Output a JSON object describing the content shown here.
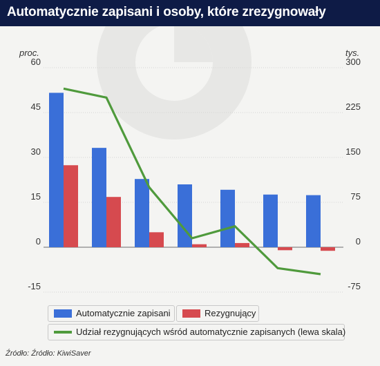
{
  "header": {
    "title": "Automatycznie zapisani i osoby, które zrezygnowały"
  },
  "source": "Źródło: Źródło: KiwiSaver",
  "colors": {
    "header_bg": "#0e1b46",
    "blue": "#3a6fd8",
    "red": "#d64a4f",
    "green": "#4f9a3c"
  },
  "chart_data": {
    "type": "bar",
    "categories": [
      "",
      "",
      "",
      "",
      "",
      "",
      ""
    ],
    "left_axis": {
      "unit_label": "proc.",
      "range": [
        -15,
        60
      ],
      "ticks": [
        -15,
        0,
        15,
        30,
        45,
        60
      ]
    },
    "right_axis": {
      "unit_label": "tys.",
      "range": [
        -75,
        300
      ],
      "ticks": [
        "-75",
        "0",
        "75",
        "150",
        "225",
        "300"
      ]
    },
    "series": [
      {
        "name": "Automatycznie zapisani",
        "axis": "right",
        "kind": "bar",
        "color": "#3a6fd8",
        "values": [
          258,
          166,
          114,
          105,
          96,
          88,
          87
        ]
      },
      {
        "name": "Rezygnujący",
        "axis": "right",
        "kind": "bar",
        "color": "#d64a4f",
        "values": [
          137,
          84,
          25,
          5,
          7,
          -5,
          -6
        ]
      },
      {
        "name": "Udział rezygnujących wśród automatycznie zapisanych (lewa skala)",
        "axis": "left",
        "kind": "line",
        "color": "#4f9a3c",
        "values": [
          53,
          50,
          20,
          3,
          7,
          -7,
          -9
        ]
      }
    ],
    "grid": true,
    "legend_position": "bottom"
  }
}
